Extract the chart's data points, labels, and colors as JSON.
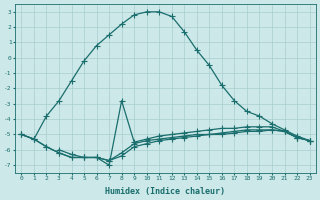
{
  "xlabel": "Humidex (Indice chaleur)",
  "bg_color": "#cde8e8",
  "grid_color": "#a8cece",
  "line_color": "#1a6e6e",
  "xlim": [
    -0.5,
    23.5
  ],
  "ylim": [
    -7.5,
    3.5
  ],
  "yticks": [
    3,
    2,
    1,
    0,
    -1,
    -2,
    -3,
    -4,
    -5,
    -6,
    -7
  ],
  "xticks": [
    0,
    1,
    2,
    3,
    4,
    5,
    6,
    7,
    8,
    9,
    10,
    11,
    12,
    13,
    14,
    15,
    16,
    17,
    18,
    19,
    20,
    21,
    22,
    23
  ],
  "main_line": {
    "x": [
      0,
      1,
      2,
      3,
      4,
      5,
      6,
      7,
      8,
      9,
      10,
      11,
      12,
      13,
      14,
      15,
      16,
      17,
      18,
      19,
      20,
      21,
      22,
      23
    ],
    "y": [
      -5.0,
      -5.3,
      -3.8,
      -2.8,
      -1.5,
      -0.2,
      0.8,
      1.5,
      2.2,
      2.8,
      3.0,
      3.0,
      2.7,
      1.7,
      0.5,
      -0.5,
      -1.8,
      -2.8,
      -3.5,
      -3.8,
      -4.3,
      -4.7,
      -5.1,
      -5.4
    ]
  },
  "spike_line": {
    "x": [
      3,
      4,
      5,
      6,
      7,
      8,
      9,
      10,
      11,
      12,
      13,
      14,
      15,
      16,
      17,
      18,
      19,
      20,
      21,
      22,
      23
    ],
    "y": [
      -6.0,
      -6.3,
      -6.5,
      -6.5,
      -7.0,
      -2.8,
      -5.5,
      -5.3,
      -5.1,
      -5.0,
      -4.9,
      -4.8,
      -4.7,
      -4.6,
      -4.6,
      -4.5,
      -4.5,
      -4.5,
      -4.8,
      -5.2,
      -5.4
    ]
  },
  "flat_line1": {
    "x": [
      0,
      1,
      2,
      3,
      4,
      5,
      6,
      7,
      8,
      9,
      10,
      11,
      12,
      13,
      14,
      15,
      16,
      17,
      18,
      19,
      20,
      21,
      22,
      23
    ],
    "y": [
      -5.0,
      -5.3,
      -5.8,
      -6.2,
      -6.5,
      -6.5,
      -6.5,
      -6.7,
      -6.4,
      -5.8,
      -5.6,
      -5.4,
      -5.3,
      -5.2,
      -5.1,
      -5.0,
      -5.0,
      -4.9,
      -4.8,
      -4.8,
      -4.7,
      -4.8,
      -5.2,
      -5.4
    ]
  },
  "flat_line2": {
    "x": [
      0,
      1,
      2,
      3,
      4,
      5,
      6,
      7,
      8,
      9,
      10,
      11,
      12,
      13,
      14,
      15,
      16,
      17,
      18,
      19,
      20,
      21,
      22,
      23
    ],
    "y": [
      -5.0,
      -5.3,
      -5.8,
      -6.2,
      -6.5,
      -6.5,
      -6.5,
      -6.7,
      -6.2,
      -5.6,
      -5.4,
      -5.3,
      -5.2,
      -5.1,
      -5.0,
      -5.0,
      -4.9,
      -4.8,
      -4.7,
      -4.7,
      -4.7,
      -4.8,
      -5.2,
      -5.4
    ]
  }
}
